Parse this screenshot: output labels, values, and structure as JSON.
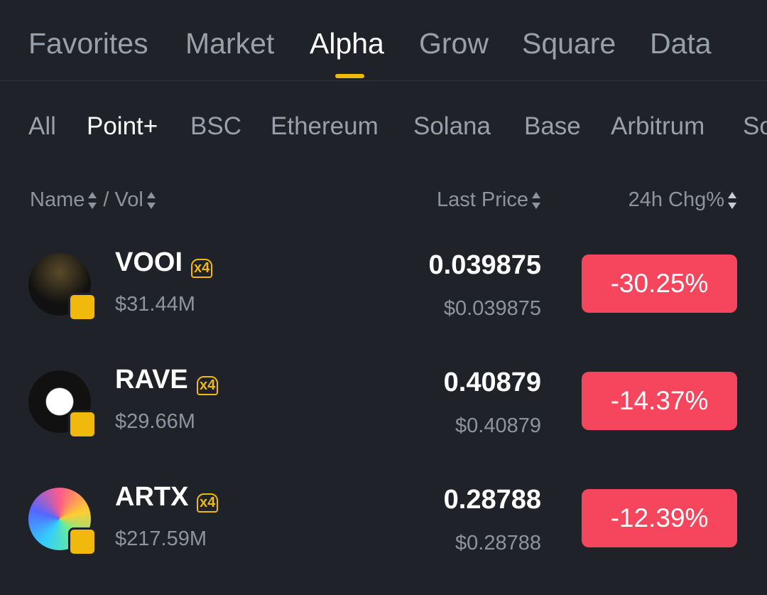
{
  "tabs": [
    "Favorites",
    "Market",
    "Alpha",
    "Grow",
    "Square",
    "Data"
  ],
  "subtabs": [
    "All",
    "Point+",
    "BSC",
    "Ethereum",
    "Solana",
    "Base",
    "Arbitrum",
    "So"
  ],
  "header": {
    "name": "Name",
    "vol": "/ Vol",
    "price": "Last Price",
    "change": "24h Chg%"
  },
  "rows": [
    {
      "name": "VOOI",
      "badge": "x4",
      "vol": "$31.44M",
      "price": "0.039875",
      "usd": "$0.039875",
      "change": "-30.25%"
    },
    {
      "name": "RAVE",
      "badge": "x4",
      "vol": "$29.66M",
      "price": "0.40879",
      "usd": "$0.40879",
      "change": "-14.37%"
    },
    {
      "name": "ARTX",
      "badge": "x4",
      "vol": "$217.59M",
      "price": "0.28788",
      "usd": "$0.28788",
      "change": "-12.39%"
    }
  ]
}
